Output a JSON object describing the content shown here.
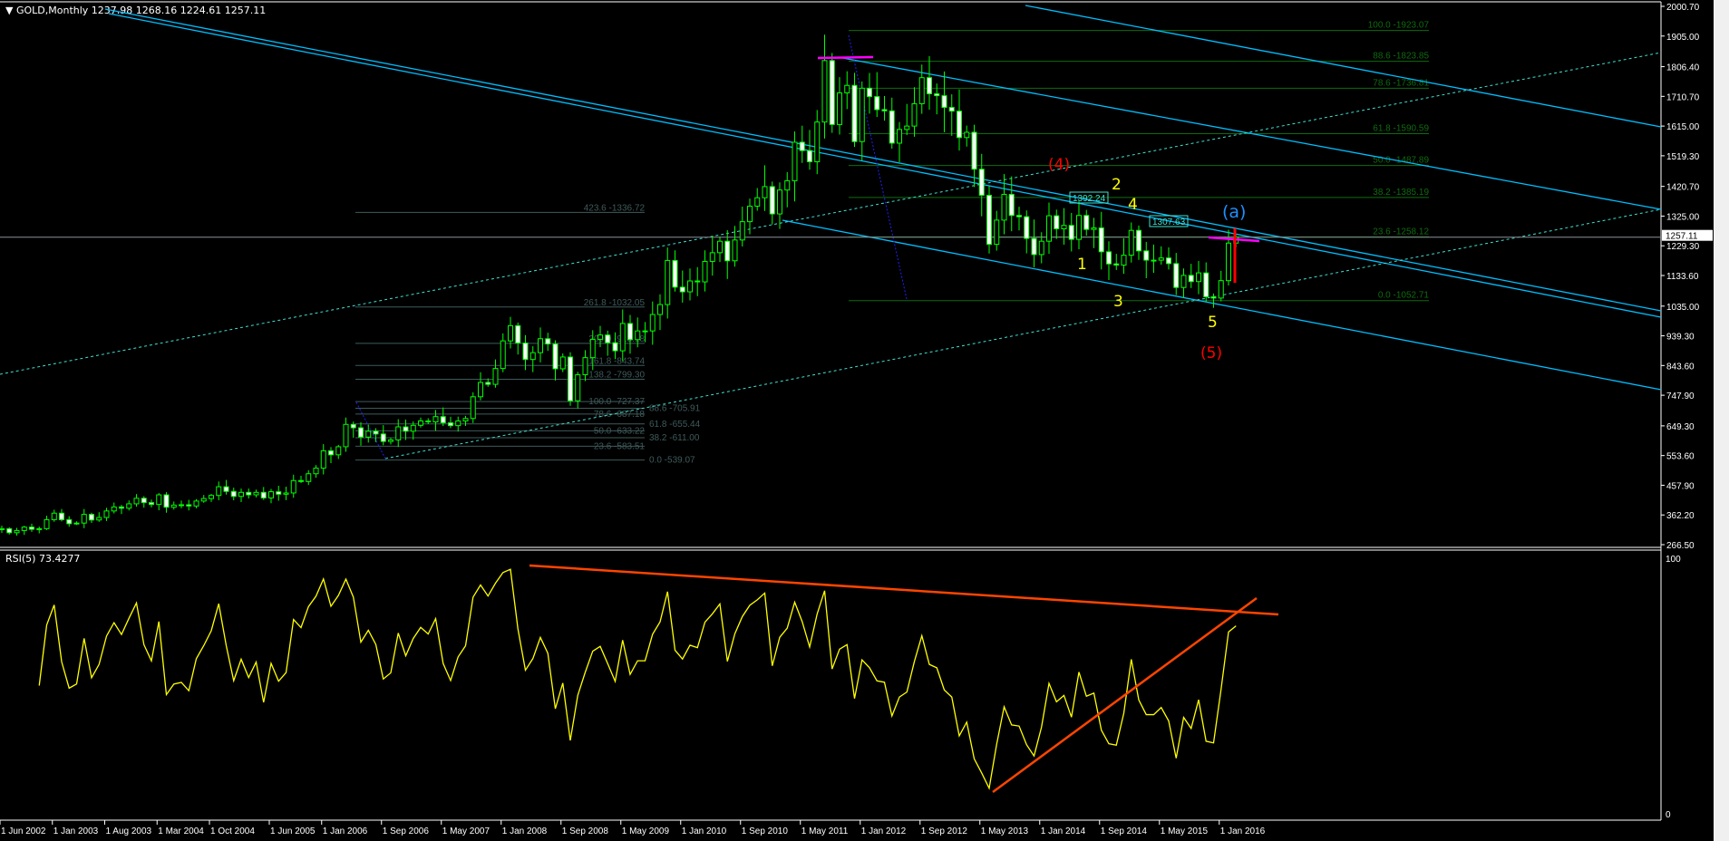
{
  "header": {
    "symbol": "GOLD,Monthly",
    "ohlc": "1237.98 1268.16 1224.61 1257.11"
  },
  "rsi_header": "RSI(5) 73.4277",
  "colors": {
    "background": "#000000",
    "bull_body": "#000000",
    "bear_body": "#ffffff",
    "candle_outline": "#00ff00",
    "trendline": "#00bfff",
    "dashed_line": "#40e0d0",
    "fib_right": "#0f6b0f",
    "fib_left": "#3f5a5a",
    "rsi": "#ffff00",
    "rsi_trend": "#ff4500",
    "magenta": "#ff00ff",
    "wave_red": "#ff0000",
    "wave_yellow": "#ffff00",
    "wave_a": "#1e90ff"
  },
  "chart_data": [
    {
      "type": "candlestick",
      "title": "GOLD,Monthly",
      "start_month": "2002-06",
      "ylim": [
        266.5,
        2000.7
      ],
      "y_ticks": [
        "2000.70",
        "1905.00",
        "1806.40",
        "1710.70",
        "1615.00",
        "1519.30",
        "1420.70",
        "1325.00",
        "1229.30",
        "1133.60",
        "1035.00",
        "939.30",
        "843.60",
        "747.90",
        "649.30",
        "553.60",
        "457.90",
        "362.20",
        "266.50"
      ],
      "current_price": "1257.11",
      "x_ticks": [
        {
          "label": "1 Jun 2002",
          "date": "2002-06"
        },
        {
          "label": "1 Jan 2003",
          "date": "2003-01"
        },
        {
          "label": "1 Aug 2003",
          "date": "2003-08"
        },
        {
          "label": "1 Mar 2004",
          "date": "2004-03"
        },
        {
          "label": "1 Oct 2004",
          "date": "2004-10"
        },
        {
          "label": "1 Jun 2005",
          "date": "2005-06"
        },
        {
          "label": "1 Jan 2006",
          "date": "2006-01"
        },
        {
          "label": "1 Sep 2006",
          "date": "2006-09"
        },
        {
          "label": "1 May 2007",
          "date": "2007-05"
        },
        {
          "label": "1 Jan 2008",
          "date": "2008-01"
        },
        {
          "label": "1 Sep 2008",
          "date": "2008-09"
        },
        {
          "label": "1 May 2009",
          "date": "2009-05"
        },
        {
          "label": "1 Jan 2010",
          "date": "2010-01"
        },
        {
          "label": "1 Sep 2010",
          "date": "2010-09"
        },
        {
          "label": "1 May 2011",
          "date": "2011-05"
        },
        {
          "label": "1 Jan 2012",
          "date": "2012-01"
        },
        {
          "label": "1 Sep 2012",
          "date": "2012-09"
        },
        {
          "label": "1 May 2013",
          "date": "2013-05"
        },
        {
          "label": "1 Jan 2014",
          "date": "2014-01"
        },
        {
          "label": "1 Sep 2014",
          "date": "2014-09"
        },
        {
          "label": "1 May 2015",
          "date": "2015-05"
        },
        {
          "label": "1 Jan 2016",
          "date": "2016-01"
        }
      ],
      "closes": [
        318,
        305,
        312,
        323,
        316,
        318,
        347,
        368,
        347,
        334,
        336,
        364,
        346,
        354,
        375,
        388,
        384,
        398,
        416,
        402,
        396,
        427,
        387,
        394,
        395,
        391,
        407,
        415,
        425,
        453,
        438,
        422,
        435,
        427,
        435,
        417,
        437,
        429,
        433,
        473,
        470,
        495,
        513,
        569,
        556,
        582,
        654,
        643,
        613,
        632,
        623,
        599,
        604,
        646,
        632,
        651,
        665,
        662,
        679,
        659,
        650,
        665,
        673,
        743,
        789,
        783,
        834,
        923,
        972,
        916,
        863,
        885,
        930,
        913,
        833,
        871,
        730,
        814,
        869,
        928,
        942,
        917,
        891,
        979,
        927,
        955,
        955,
        1008,
        1040,
        1182,
        1096,
        1081,
        1116,
        1113,
        1179,
        1207,
        1244,
        1181,
        1248,
        1307,
        1357,
        1384,
        1420,
        1332,
        1409,
        1439,
        1563,
        1536,
        1500,
        1628,
        1826,
        1620,
        1722,
        1746,
        1565,
        1737,
        1710,
        1668,
        1664,
        1560,
        1604,
        1615,
        1687,
        1771,
        1719,
        1713,
        1675,
        1663,
        1578,
        1595,
        1476,
        1392,
        1234,
        1312,
        1395,
        1327,
        1323,
        1253,
        1201,
        1244,
        1326,
        1284,
        1295,
        1250,
        1327,
        1282,
        1287,
        1210,
        1171,
        1167,
        1199,
        1279,
        1213,
        1183,
        1183,
        1190,
        1172,
        1095,
        1134,
        1114,
        1142,
        1065,
        1061,
        1117,
        1238,
        1257.11
      ],
      "last_candle": {
        "open": 1237.98,
        "high": 1268.16,
        "low": 1224.61,
        "close": 1257.11
      },
      "fib_right": [
        {
          "label": "100.0 -1923.07",
          "price": 1923.07
        },
        {
          "label": "88.6 -1823.85",
          "price": 1823.85
        },
        {
          "label": "78.6 -1736.81",
          "price": 1736.81
        },
        {
          "label": "61.8 -1590.59",
          "price": 1590.59
        },
        {
          "label": "50.0 -1487.89",
          "price": 1487.89
        },
        {
          "label": "38.2 -1385.19",
          "price": 1385.19
        },
        {
          "label": "23.6 -1258.12",
          "price": 1258.12
        },
        {
          "label": "0.0 -1052.71",
          "price": 1052.71
        }
      ],
      "fib_left": [
        {
          "label": "423.6 -1336.72",
          "price": 1336.72
        },
        {
          "label": "261.8 -1032.05",
          "price": 1032.05
        },
        {
          "label": "200.0 -915.18",
          "price": 915.18
        },
        {
          "label": "161.8 -843.74",
          "price": 843.74
        },
        {
          "label": "138.2 -799.30",
          "price": 799.3
        },
        {
          "label": "100.0 -727.37",
          "price": 727.37
        },
        {
          "label": "88.6 -705.91",
          "price": 705.91
        },
        {
          "label": "78.6 -687.18",
          "price": 687.18
        },
        {
          "label": "61.8 -655.44",
          "price": 655.44
        },
        {
          "label": "50.0 -633.22",
          "price": 633.22
        },
        {
          "label": "38.2 -611.00",
          "price": 611.0
        },
        {
          "label": "23.6 -583.51",
          "price": 583.51
        },
        {
          "label": "0.0 -539.07",
          "price": 539.07
        }
      ],
      "price_boxes": [
        "1392.24",
        "1307.63"
      ],
      "wave_labels": {
        "w4_major": "(4)",
        "w1": "1",
        "w2": "2",
        "w3": "3",
        "w4": "4",
        "w5": "5",
        "w5_major": "(5)",
        "wa": "(a)"
      }
    },
    {
      "type": "line",
      "title": "RSI(5) 73.4277",
      "period": 5,
      "ylim": [
        0,
        100
      ],
      "y_ticks": [
        "100",
        "0"
      ],
      "current_value": 73.4277
    }
  ]
}
